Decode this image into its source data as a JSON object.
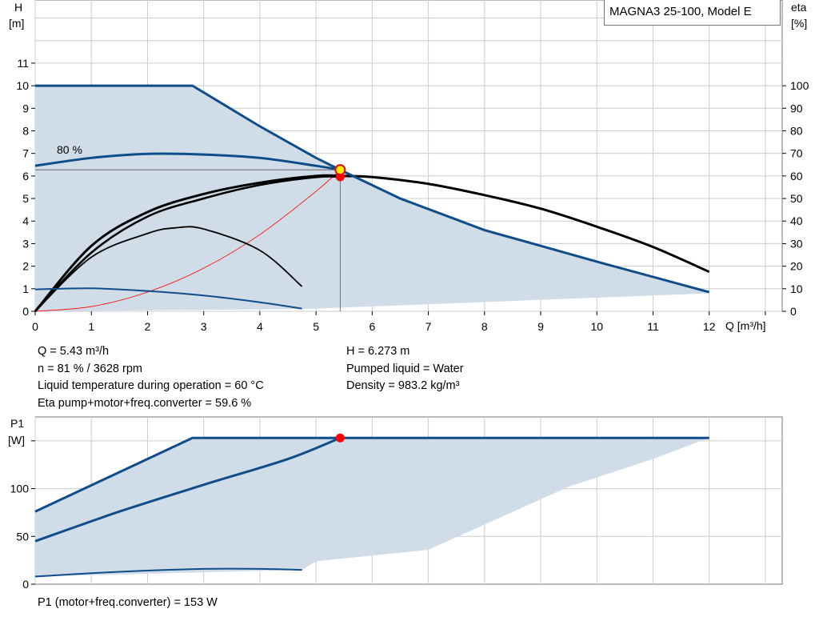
{
  "title": "MAGNA3 25-100, Model E",
  "top_chart": {
    "y_label_line1": "H",
    "y_label_line2": "[m]",
    "y2_label_line1": "eta",
    "y2_label_line2": "[%]",
    "x_label": "Q [m³/h]",
    "curve_label": "80 %"
  },
  "bottom_chart": {
    "y_label_line1": "P1",
    "y_label_line2": "[W]"
  },
  "info": {
    "q": "Q = 5.43 m³/h",
    "n": "n = 81 % / 3628 rpm",
    "temp": "Liquid temperature during operation = 60 °C",
    "eta": "Eta pump+motor+freq.converter = 59.6 %",
    "h": "H = 6.273 m",
    "liquid": "Pumped liquid = Water",
    "density": "Density = 983.2 kg/m³",
    "p1": "P1 (motor+freq.converter) = 153 W"
  },
  "colors": {
    "envelope_fill": "#d0dce7",
    "pump_curve": "#0f4c8a",
    "efficiency_curve": "#000000",
    "system_curve": "#ff0000",
    "grid": "#cccccc",
    "duty_point": "#ff0000",
    "duty_point_highlight": "#ffee00"
  },
  "chart_data": [
    {
      "type": "line",
      "name": "QH",
      "xlabel": "Q [m³/h]",
      "ylabel": "H [m]",
      "y2label": "eta [%]",
      "xlim": [
        0,
        13.3
      ],
      "ylim": [
        0,
        13.8
      ],
      "y2lim": [
        0,
        138
      ],
      "x_ticks": [
        0,
        1,
        2,
        3,
        4,
        5,
        6,
        7,
        8,
        9,
        10,
        11,
        12
      ],
      "y_ticks": [
        0,
        1,
        2,
        3,
        4,
        5,
        6,
        7,
        8,
        9,
        10,
        11
      ],
      "y2_ticks": [
        0,
        10,
        20,
        30,
        40,
        50,
        60,
        70,
        80,
        90,
        100
      ],
      "grid": true,
      "envelope": [
        [
          0,
          10
        ],
        [
          2.8,
          10
        ],
        [
          4.0,
          8.2
        ],
        [
          5.0,
          6.8
        ],
        [
          5.43,
          6.27
        ],
        [
          6.5,
          5.0
        ],
        [
          8.0,
          3.6
        ],
        [
          10.0,
          2.2
        ],
        [
          12.0,
          0.85
        ],
        [
          12.0,
          0.8
        ],
        [
          4.8,
          0.1
        ],
        [
          0,
          0
        ]
      ],
      "pump_curves": [
        {
          "points": [
            [
              0,
              10
            ],
            [
              2.8,
              10
            ],
            [
              4.0,
              8.2
            ],
            [
              5.0,
              6.8
            ],
            [
              5.43,
              6.27
            ],
            [
              6.5,
              5.0
            ],
            [
              8.0,
              3.6
            ],
            [
              10.0,
              2.2
            ],
            [
              12.0,
              0.85
            ]
          ]
        },
        {
          "points": [
            [
              0,
              6.45
            ],
            [
              1.0,
              6.8
            ],
            [
              2.0,
              6.98
            ],
            [
              3.0,
              6.95
            ],
            [
              4.0,
              6.8
            ],
            [
              5.0,
              6.45
            ],
            [
              5.43,
              6.27
            ]
          ]
        },
        {
          "points": [
            [
              0,
              0.97
            ],
            [
              1.0,
              1.02
            ],
            [
              2.0,
              0.9
            ],
            [
              3.0,
              0.7
            ],
            [
              4.0,
              0.4
            ],
            [
              4.75,
              0.12
            ]
          ]
        }
      ],
      "efficiency_curves_pct": [
        {
          "points": [
            [
              0,
              0
            ],
            [
              1.0,
              29
            ],
            [
              2.0,
              44
            ],
            [
              3.0,
              52
            ],
            [
              4.0,
              57
            ],
            [
              5.0,
              60
            ],
            [
              5.5,
              60
            ],
            [
              6.0,
              59.5
            ],
            [
              7.0,
              56.5
            ],
            [
              8.0,
              51.5
            ],
            [
              9.0,
              45.5
            ],
            [
              10.0,
              37.5
            ],
            [
              11.0,
              28.5
            ],
            [
              12.0,
              17.5
            ]
          ]
        },
        {
          "points": [
            [
              0,
              0
            ],
            [
              1.0,
              26
            ],
            [
              2.0,
              42
            ],
            [
              3.0,
              50
            ],
            [
              4.0,
              56
            ],
            [
              5.0,
              59.5
            ],
            [
              5.43,
              59.6
            ]
          ]
        },
        {
          "points": [
            [
              0,
              0
            ],
            [
              1.0,
              24
            ],
            [
              2.0,
              34.5
            ],
            [
              2.5,
              37
            ],
            [
              3.0,
              36.5
            ],
            [
              4.0,
              27
            ],
            [
              4.75,
              11
            ]
          ]
        }
      ],
      "system_curve": {
        "points": [
          [
            0,
            0
          ],
          [
            1.0,
            0.21
          ],
          [
            2.0,
            0.85
          ],
          [
            3.0,
            1.91
          ],
          [
            4.0,
            3.4
          ],
          [
            5.0,
            5.32
          ],
          [
            5.43,
            6.27
          ]
        ]
      },
      "duty_point": {
        "q": 5.43,
        "h": 6.273,
        "eta": 59.6
      }
    },
    {
      "type": "line",
      "name": "P1",
      "ylabel": "P1 [W]",
      "xlim": [
        0,
        13.3
      ],
      "ylim": [
        0,
        175
      ],
      "y_ticks": [
        0,
        50,
        100
      ],
      "grid": true,
      "envelope": [
        [
          0,
          76
        ],
        [
          2.8,
          153
        ],
        [
          12.0,
          153
        ],
        [
          11.0,
          131
        ],
        [
          9.5,
          102
        ],
        [
          7.0,
          36
        ],
        [
          5.0,
          24
        ],
        [
          4.75,
          15
        ],
        [
          0,
          8
        ]
      ],
      "power_curves": [
        {
          "points": [
            [
              0,
              76
            ],
            [
              2.8,
              153
            ],
            [
              12.0,
              153
            ]
          ]
        },
        {
          "points": [
            [
              0,
              45
            ],
            [
              1.5,
              76
            ],
            [
              3.0,
              104
            ],
            [
              4.5,
              131
            ],
            [
              5.43,
              153
            ]
          ]
        },
        {
          "points": [
            [
              0,
              8
            ],
            [
              1.5,
              13
            ],
            [
              3.0,
              16
            ],
            [
              4.0,
              16
            ],
            [
              4.75,
              15
            ]
          ]
        }
      ],
      "duty_point": {
        "q": 5.43,
        "p1": 153
      }
    }
  ]
}
